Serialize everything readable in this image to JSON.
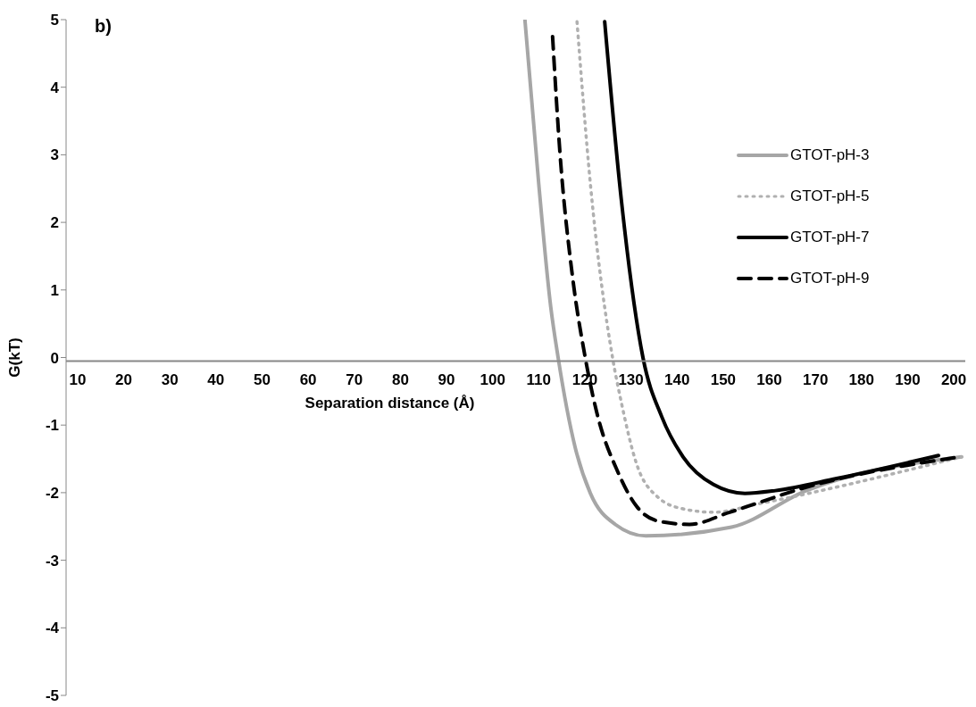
{
  "chart_data": {
    "type": "line",
    "xlabel": "Separation distance (Å)",
    "ylabel": "G(kT)",
    "annotations": [
      "b)"
    ],
    "xlim": [
      7.5,
      202.5
    ],
    "xticks": [
      10,
      20,
      30,
      40,
      50,
      60,
      70,
      80,
      90,
      100,
      110,
      120,
      130,
      140,
      150,
      160,
      170,
      180,
      190,
      200
    ],
    "ylim": [
      -5,
      5
    ],
    "yticks": [
      -5,
      -4,
      -3,
      -2,
      -1,
      0,
      1,
      2,
      3,
      4,
      5
    ],
    "legend": "right",
    "marker": "none",
    "series": [
      {
        "name": "GTOT-pH-3",
        "color": "#a6a6a6",
        "line_style": "solid",
        "x": [
          107,
          110,
          112.6,
          114.2,
          117.9,
          121.2,
          126.6,
          133.2,
          151.8,
          168,
          201.7
        ],
        "values": [
          5,
          2.57,
          0.75,
          0,
          -1.33,
          -2.01,
          -2.47,
          -2.64,
          -2.51,
          -1.97,
          -1.47
        ]
      },
      {
        "name": "GTOT-pH-5",
        "color": "#b0b0b0",
        "line_style": "dotted",
        "x": [
          118.3,
          121.2,
          126,
          127.9,
          131.2,
          135.9,
          141.3,
          147.9,
          158,
          201.7
        ],
        "values": [
          4.97,
          2.57,
          0,
          -0.66,
          -1.57,
          -2.07,
          -2.24,
          -2.29,
          -2.16,
          -1.47
        ]
      },
      {
        "name": "GTOT-pH-7",
        "color": "#000000",
        "line_style": "solid",
        "x": [
          124.3,
          127.9,
          132.6,
          136.7,
          141.3,
          147.9,
          154.7,
          161.3,
          174.6,
          196.7
        ],
        "values": [
          4.97,
          2.34,
          0,
          -0.88,
          -1.47,
          -1.88,
          -2.01,
          -1.97,
          -1.79,
          -1.45
        ]
      },
      {
        "name": "GTOT-pH-9",
        "color": "#000000",
        "line_style": "dashed",
        "x": [
          113,
          114.6,
          117.3,
          120,
          122.5,
          127.2,
          131.2,
          135.9,
          142.7,
          151.4,
          168,
          201.3
        ],
        "values": [
          4.75,
          3.03,
          1.21,
          0.03,
          -0.79,
          -1.7,
          -2.2,
          -2.42,
          -2.47,
          -2.29,
          -1.92,
          -1.47
        ]
      }
    ]
  }
}
